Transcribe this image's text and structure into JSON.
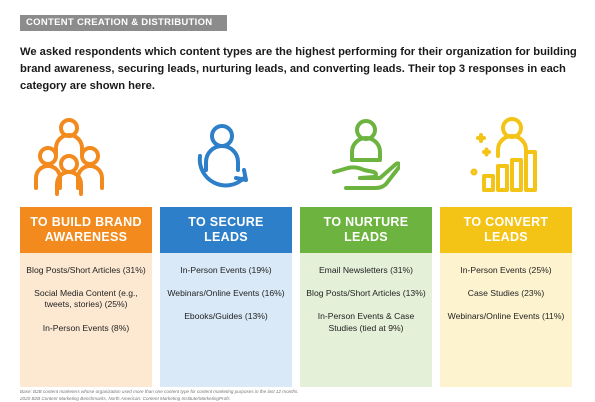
{
  "section_tag": "CONTENT CREATION & DISTRIBUTION",
  "intro": "We asked respondents which content types are the highest performing for their organization for building brand awareness, securing leads, nurturing leads, and converting leads. Their top 3 responses in each category are shown here.",
  "columns": [
    {
      "title_line1": "TO BUILD BRAND",
      "title_line2": "AWARENESS",
      "icon": "people-group-icon",
      "color": "#f28a1d",
      "bg": "#fde9d2",
      "items": [
        "Blog Posts/Short Articles (31%)",
        "Social Media Content (e.g., tweets, stories) (25%)",
        "In-Person Events (8%)"
      ]
    },
    {
      "title_line1": "TO SECURE",
      "title_line2": "LEADS",
      "icon": "person-circular-arrow-icon",
      "color": "#2e7fc9",
      "bg": "#d9e9f7",
      "items": [
        "In-Person Events (19%)",
        "Webinars/Online Events (16%)",
        "Ebooks/Guides (13%)"
      ]
    },
    {
      "title_line1": "TO NURTURE",
      "title_line2": "LEADS",
      "icon": "person-in-hand-icon",
      "color": "#6cb33f",
      "bg": "#e4f0d8",
      "items": [
        "Email Newsletters (31%)",
        "Blog Posts/Short Articles (13%)",
        "In-Person Events & Case Studies (tied at 9%)"
      ]
    },
    {
      "title_line1": "TO CONVERT",
      "title_line2": "LEADS",
      "icon": "person-bar-chart-icon",
      "color": "#f3c316",
      "bg": "#fdf3cf",
      "items": [
        "In-Person Events (25%)",
        "Case Studies (23%)",
        "Webinars/Online Events (11%)"
      ]
    }
  ],
  "footnotes": [
    "Base: B2B content marketers whose organization used more than one content type for content marketing purposes in the last 12 months.",
    "2020 B2B Content Marketing Benchmarks, North American: Content Marketing Institute/MarketingProfs"
  ]
}
